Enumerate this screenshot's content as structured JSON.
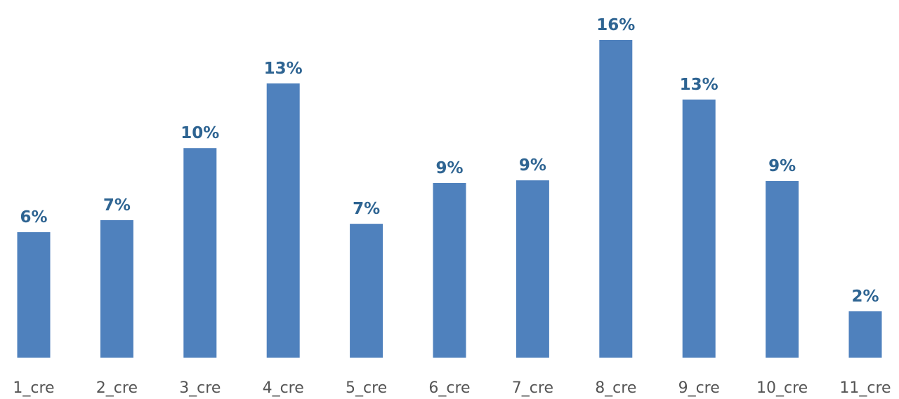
{
  "chart_data": {
    "type": "bar",
    "categories": [
      "1_cre",
      "2_cre",
      "3_cre",
      "4_cre",
      "5_cre",
      "6_cre",
      "7_cre",
      "8_cre",
      "9_cre",
      "10_cre",
      "11_cre"
    ],
    "values": [
      6.15,
      6.74,
      10.27,
      13.44,
      6.56,
      8.56,
      8.69,
      15.57,
      12.65,
      8.66,
      2.27
    ],
    "value_labels": [
      "6%",
      "7%",
      "10%",
      "13%",
      "7%",
      "9%",
      "9%",
      "16%",
      "13%",
      "9%",
      "2%"
    ],
    "color": "#4f81bd"
  }
}
